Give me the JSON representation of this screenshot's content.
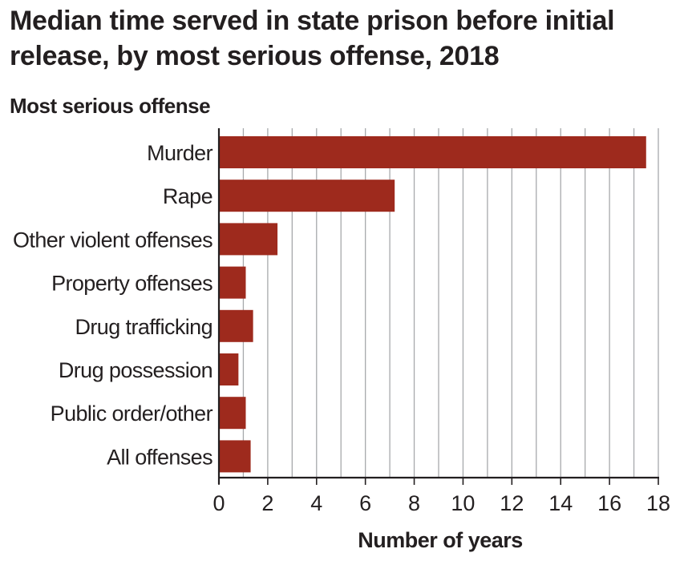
{
  "chart_data": {
    "type": "bar",
    "orientation": "horizontal",
    "title": "Median time served in state prison before initial release, by most serious offense, 2018",
    "ylabel": "Most serious offense",
    "xlabel": "Number of years",
    "categories": [
      "Murder",
      "Rape",
      "Other violent offenses",
      "Property offenses",
      "Drug trafficking",
      "Drug possession",
      "Public order/other",
      "All offenses"
    ],
    "values": [
      17.5,
      7.2,
      2.4,
      1.1,
      1.4,
      0.8,
      1.1,
      1.3
    ],
    "xlim": [
      0,
      18
    ],
    "xticks": [
      0,
      2,
      4,
      6,
      8,
      10,
      12,
      14,
      16,
      18
    ],
    "vertical_gridlines": true,
    "bar_color": "#9e2a1d",
    "grid_color": "#a7a9ac",
    "axis_color": "#231f20"
  }
}
